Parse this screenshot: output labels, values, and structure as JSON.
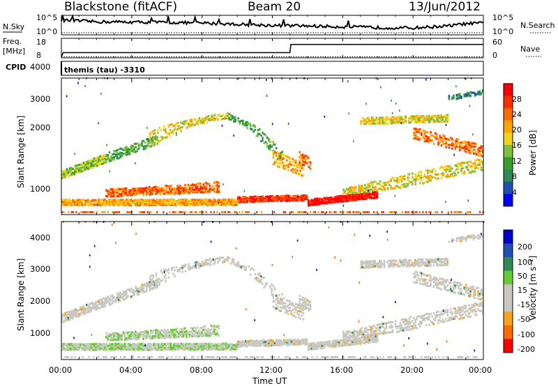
{
  "header": {
    "station": "Blackstone (fitACF)",
    "beam": "Beam 20",
    "date": "13/Jun/2012"
  },
  "noise_panel": {
    "left_label": "N.Sky",
    "left_ticks": [
      "10^5",
      "10^0"
    ],
    "right_label": "N.Search",
    "right_ticks": [
      "10^5",
      "10^0"
    ]
  },
  "freq_panel": {
    "left_label_1": "Freq.",
    "left_label_2": "[MHz]",
    "left_ticks": [
      "18",
      "8"
    ],
    "right_label": "Nave",
    "right_ticks": [
      "60",
      "0"
    ],
    "cpid_label": "CPID",
    "cpid_text": "themis (tau) -3310"
  },
  "chart_data": [
    {
      "type": "line",
      "name": "noise",
      "series": [
        {
          "name": "N.Sky",
          "x_hours": [
            0,
            0.5,
            2,
            4,
            6,
            8,
            10,
            12,
            14,
            16,
            18,
            20,
            22,
            23,
            24
          ],
          "values": [
            0.8,
            0.77,
            0.7,
            0.68,
            0.66,
            0.62,
            0.55,
            0.48,
            0.45,
            0.4,
            0.35,
            0.33,
            0.45,
            0.58,
            0.62
          ]
        },
        {
          "name": "N.Search",
          "x_hours": [
            0,
            24
          ],
          "values": [
            0.0,
            0.0
          ]
        }
      ],
      "ylim": [
        0,
        1
      ]
    },
    {
      "type": "line",
      "name": "frequency_nave",
      "series": [
        {
          "name": "Freq.",
          "x_hours": [
            0,
            0.1,
            13.0,
            13.05,
            24
          ],
          "values": [
            8,
            10.5,
            10.5,
            15,
            15
          ]
        },
        {
          "name": "Nave",
          "x_hours": [
            0,
            24
          ],
          "values": [
            8.2,
            8.2
          ]
        }
      ],
      "ylim": [
        8,
        18
      ]
    },
    {
      "type": "heatmap",
      "name": "power",
      "xlim": [
        0,
        24
      ],
      "ylim": [
        180,
        4500
      ],
      "ylabel": "Slant Range [km]",
      "y_ticks": [
        "1000",
        "2000",
        "3000",
        "4000"
      ],
      "colorbar": {
        "label": "Power [dB]",
        "ticks": [
          "28",
          "24",
          "20",
          "16",
          "12",
          "8",
          "4"
        ],
        "colors": [
          "#0000ff",
          "#1d4fb4",
          "#2e8b57",
          "#33a02c",
          "#7fbf3f",
          "#f3d21c",
          "#ffa500",
          "#ff6a00",
          "#ff2d00",
          "#ff0000"
        ]
      }
    },
    {
      "type": "heatmap",
      "name": "velocity",
      "xlim": [
        0,
        24
      ],
      "ylim": [
        180,
        4500
      ],
      "ylabel": "Slant Range [km]",
      "y_ticks": [
        "1000",
        "2000",
        "3000",
        "4000"
      ],
      "x_ticks": [
        "00:00",
        "04:00",
        "08:00",
        "12:00",
        "16:00",
        "20:00",
        "00:00"
      ],
      "xlabel": "Time UT",
      "colorbar": {
        "label": "Velocity [m s⁻¹]",
        "ticks": [
          "200",
          "100",
          "50",
          "15",
          "-15",
          "-50",
          "-100",
          "-200"
        ],
        "colors": [
          "#ff0000",
          "#ff6a00",
          "#f7a31c",
          "#c8c8c0",
          "#c8c8c0",
          "#66cc33",
          "#2e8b57",
          "#1d4fb4",
          "#0000cc"
        ]
      }
    }
  ]
}
